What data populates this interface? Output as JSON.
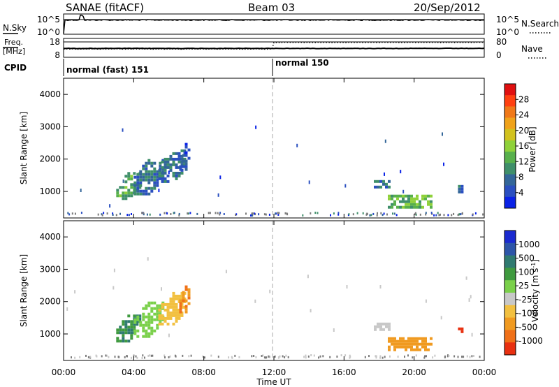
{
  "header": {
    "radar": "SANAE (fitACF)",
    "beam": "Beam 03",
    "date": "20/Sep/2012"
  },
  "top_panels": {
    "nsky_label": "N.Sky",
    "nsky_ticks": [
      "10^5",
      "10^0"
    ],
    "nsearch_label": "N.Search",
    "nsearch_ticks": [
      "10^5",
      "10^0"
    ],
    "freq_label_1": "Freq.",
    "freq_label_2": "[MHz]",
    "freq_ticks": [
      "18",
      "8"
    ],
    "nave_label": "Nave",
    "nave_ticks": [
      "80",
      "0"
    ],
    "cpid_label": "CPID",
    "cpid_segments": [
      {
        "label": "normal (fast) 151",
        "start_hour": 0,
        "end_hour": 12
      },
      {
        "label": "normal 150",
        "start_hour": 12,
        "end_hour": 24
      }
    ]
  },
  "x_axis": {
    "label": "Time UT",
    "ticks": [
      "00:00",
      "04:00",
      "08:00",
      "12:00",
      "16:00",
      "20:00",
      "00:00"
    ]
  },
  "colors": {
    "power_scale": [
      "#0a22e6",
      "#2a4fc0",
      "#336699",
      "#3f8f6a",
      "#58b04c",
      "#8fd13a",
      "#d2c21e",
      "#f0a21a",
      "#f07818",
      "#ff4010",
      "#e01010"
    ],
    "velocity_scale": [
      "#1a2ad0",
      "#2d55a8",
      "#2f7a70",
      "#3f9a3f",
      "#7ad04a",
      "#c8c8c8",
      "#f2c040",
      "#f09a20",
      "#f07018",
      "#e83010"
    ],
    "ground_scatter": "#7a7a7a"
  },
  "chart_data": [
    {
      "type": "heatmap",
      "name": "power",
      "ylabel": "Slant Range [km]",
      "yticks": [
        "1000",
        "2000",
        "3000",
        "4000"
      ],
      "ylim": [
        180,
        4500
      ],
      "xlim_hours": [
        0,
        24
      ],
      "colorbar_label": "Power [dB]",
      "colorbar_ticks": [
        "4",
        "8",
        "12",
        "16",
        "20",
        "24",
        "28"
      ],
      "colorbar_range": [
        0,
        32
      ],
      "patches": [
        {
          "t0": 3.0,
          "t1": 4.3,
          "r0": 800,
          "r1": 1600,
          "value": 12
        },
        {
          "t0": 4.0,
          "t1": 5.6,
          "r0": 950,
          "r1": 2000,
          "value": 8
        },
        {
          "t0": 5.4,
          "t1": 6.9,
          "r0": 1300,
          "r1": 2300,
          "value": 8
        },
        {
          "t0": 6.6,
          "t1": 7.2,
          "r0": 1700,
          "r1": 2500,
          "value": 6
        },
        {
          "t0": 17.7,
          "t1": 18.5,
          "r0": 1100,
          "r1": 1350,
          "value": 8
        },
        {
          "t0": 18.5,
          "t1": 21.0,
          "r0": 500,
          "r1": 900,
          "value": 14
        },
        {
          "t0": 22.5,
          "t1": 22.7,
          "r0": 1000,
          "r1": 1200,
          "value": 6
        }
      ]
    },
    {
      "type": "heatmap",
      "name": "velocity",
      "ylabel": "Slant Range [km]",
      "yticks": [
        "1000",
        "2000",
        "3000",
        "4000"
      ],
      "ylim": [
        180,
        4500
      ],
      "xlim_hours": [
        0,
        24
      ],
      "colorbar_label": "Velocity [m s^-1]",
      "colorbar_ticks": [
        "1000",
        "500",
        "100",
        "25",
        "-25",
        "-100",
        "-500",
        "-1000"
      ],
      "patches": [
        {
          "t0": 3.0,
          "t1": 4.3,
          "r0": 800,
          "r1": 1600,
          "value": 300
        },
        {
          "t0": 4.0,
          "t1": 5.6,
          "r0": 950,
          "r1": 2000,
          "value": 150
        },
        {
          "t0": 5.4,
          "t1": 6.9,
          "r0": 1300,
          "r1": 2300,
          "value": -150
        },
        {
          "t0": 6.6,
          "t1": 7.2,
          "r0": 1700,
          "r1": 2500,
          "value": -300
        },
        {
          "t0": 17.7,
          "t1": 18.5,
          "r0": 1100,
          "r1": 1350,
          "value": 10
        },
        {
          "t0": 18.5,
          "t1": 21.0,
          "r0": 500,
          "r1": 900,
          "value": -200
        },
        {
          "t0": 22.5,
          "t1": 22.7,
          "r0": 1000,
          "r1": 1200,
          "value": -600
        }
      ]
    }
  ]
}
